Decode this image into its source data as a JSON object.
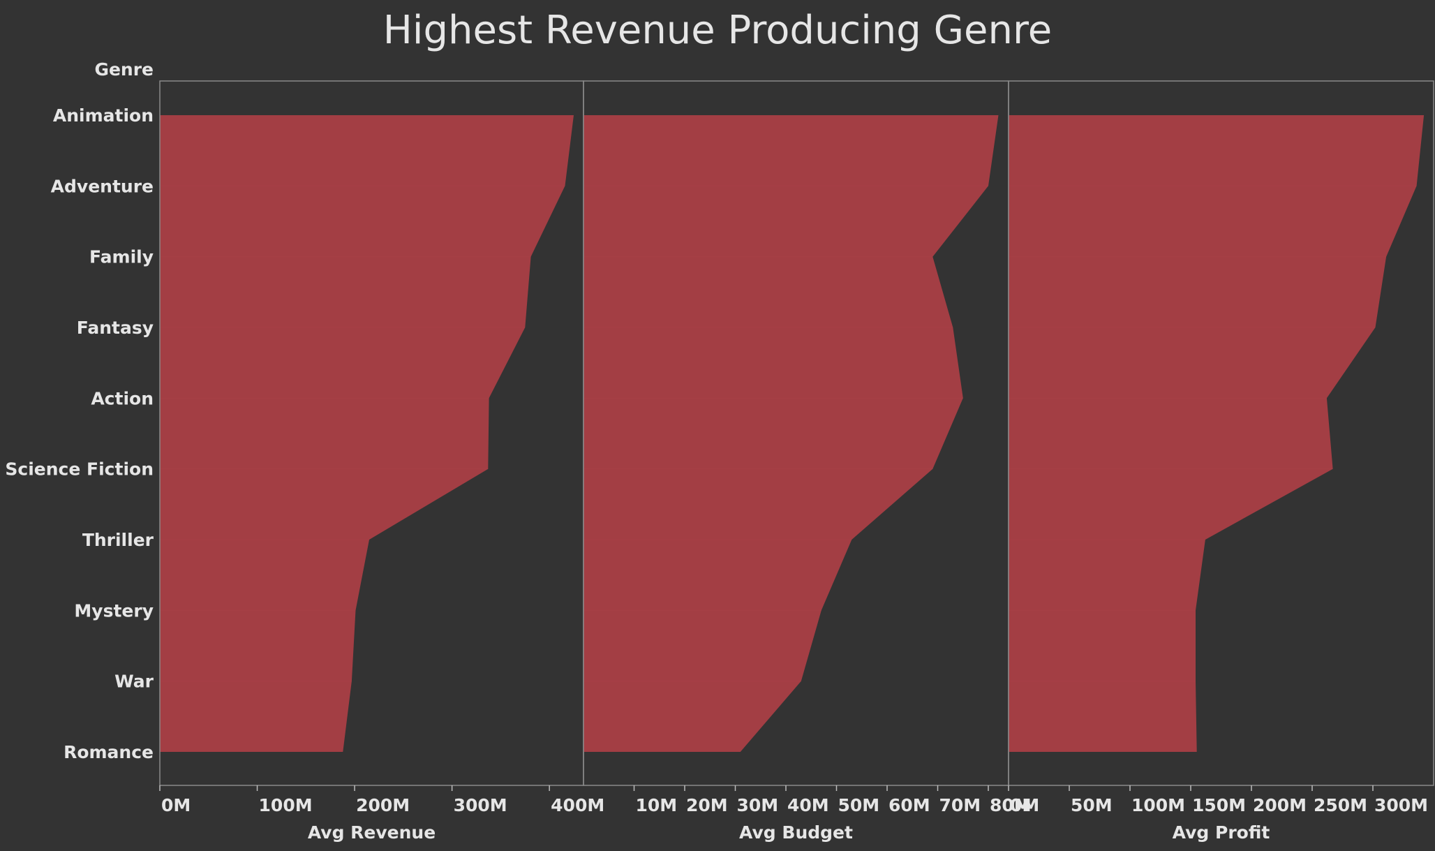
{
  "chart_data": {
    "type": "area",
    "title": "Highest Revenue Producing Genre",
    "category_header": "Genre",
    "categories": [
      "Animation",
      "Adventure",
      "Family",
      "Fantasy",
      "Action",
      "Science Fiction",
      "Thriller",
      "Mystery",
      "War",
      "Romance"
    ],
    "panels": [
      {
        "xlabel": "Avg Revenue",
        "xlim": [
          0,
          435000000
        ],
        "ticks": [
          0,
          100000000,
          200000000,
          300000000,
          400000000
        ],
        "tick_labels": [
          "0M",
          "100M",
          "200M",
          "300M",
          "400M"
        ],
        "values": [
          425000000,
          416000000,
          381000000,
          375000000,
          338000000,
          337000000,
          215000000,
          201000000,
          197000000,
          188000000
        ]
      },
      {
        "xlabel": "Avg Budget",
        "xlim": [
          0,
          84000000
        ],
        "ticks": [
          10000000,
          20000000,
          30000000,
          40000000,
          50000000,
          60000000,
          70000000,
          80000000
        ],
        "tick_labels": [
          "10M",
          "20M",
          "30M",
          "40M",
          "50M",
          "60M",
          "70M",
          "80M"
        ],
        "values": [
          82000000,
          80000000,
          69000000,
          73000000,
          75000000,
          69000000,
          53000000,
          47000000,
          43000000,
          31000000
        ]
      },
      {
        "xlabel": "Avg Profit",
        "xlim": [
          0,
          350000000
        ],
        "ticks": [
          0,
          50000000,
          100000000,
          150000000,
          200000000,
          250000000,
          300000000
        ],
        "tick_labels": [
          "0M",
          "50M",
          "100M",
          "150M",
          "200M",
          "250M",
          "300M"
        ],
        "values": [
          342000000,
          336000000,
          311000000,
          302000000,
          262000000,
          267000000,
          162000000,
          154000000,
          154000000,
          155000000
        ]
      }
    ]
  }
}
